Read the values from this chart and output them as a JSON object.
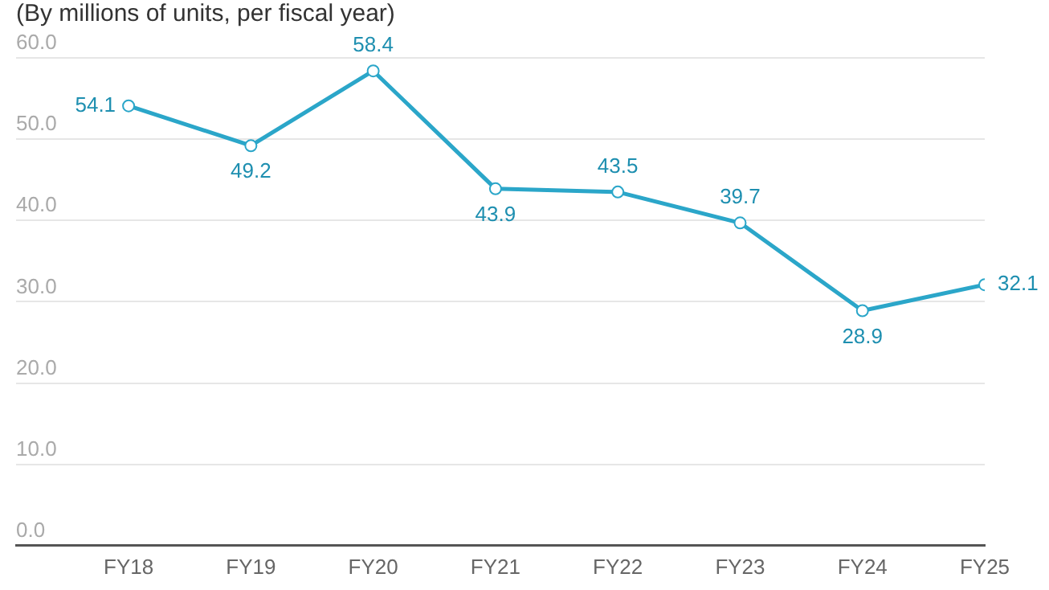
{
  "chart_data": {
    "type": "line",
    "subtitle": "(By millions of units, per fiscal year)",
    "categories": [
      "FY18",
      "FY19",
      "FY20",
      "FY21",
      "FY22",
      "FY23",
      "FY24",
      "FY25"
    ],
    "series": [
      {
        "color": "#2ba6c9",
        "values": [
          54.1,
          49.2,
          58.4,
          43.9,
          43.5,
          39.7,
          28.9,
          32.1
        ]
      }
    ],
    "ylim": [
      0,
      60
    ],
    "yticks": [
      {
        "value": 0,
        "label": "0.0"
      },
      {
        "value": 10,
        "label": "10.0"
      },
      {
        "value": 20,
        "label": "20.0"
      },
      {
        "value": 30,
        "label": "30.0"
      },
      {
        "value": 40,
        "label": "40.0"
      },
      {
        "value": 50,
        "label": "50.0"
      },
      {
        "value": 60,
        "label": "60.0"
      }
    ],
    "grid": "y",
    "marker": "circle",
    "line_style": "solid",
    "data_labels": true,
    "legend": false
  }
}
